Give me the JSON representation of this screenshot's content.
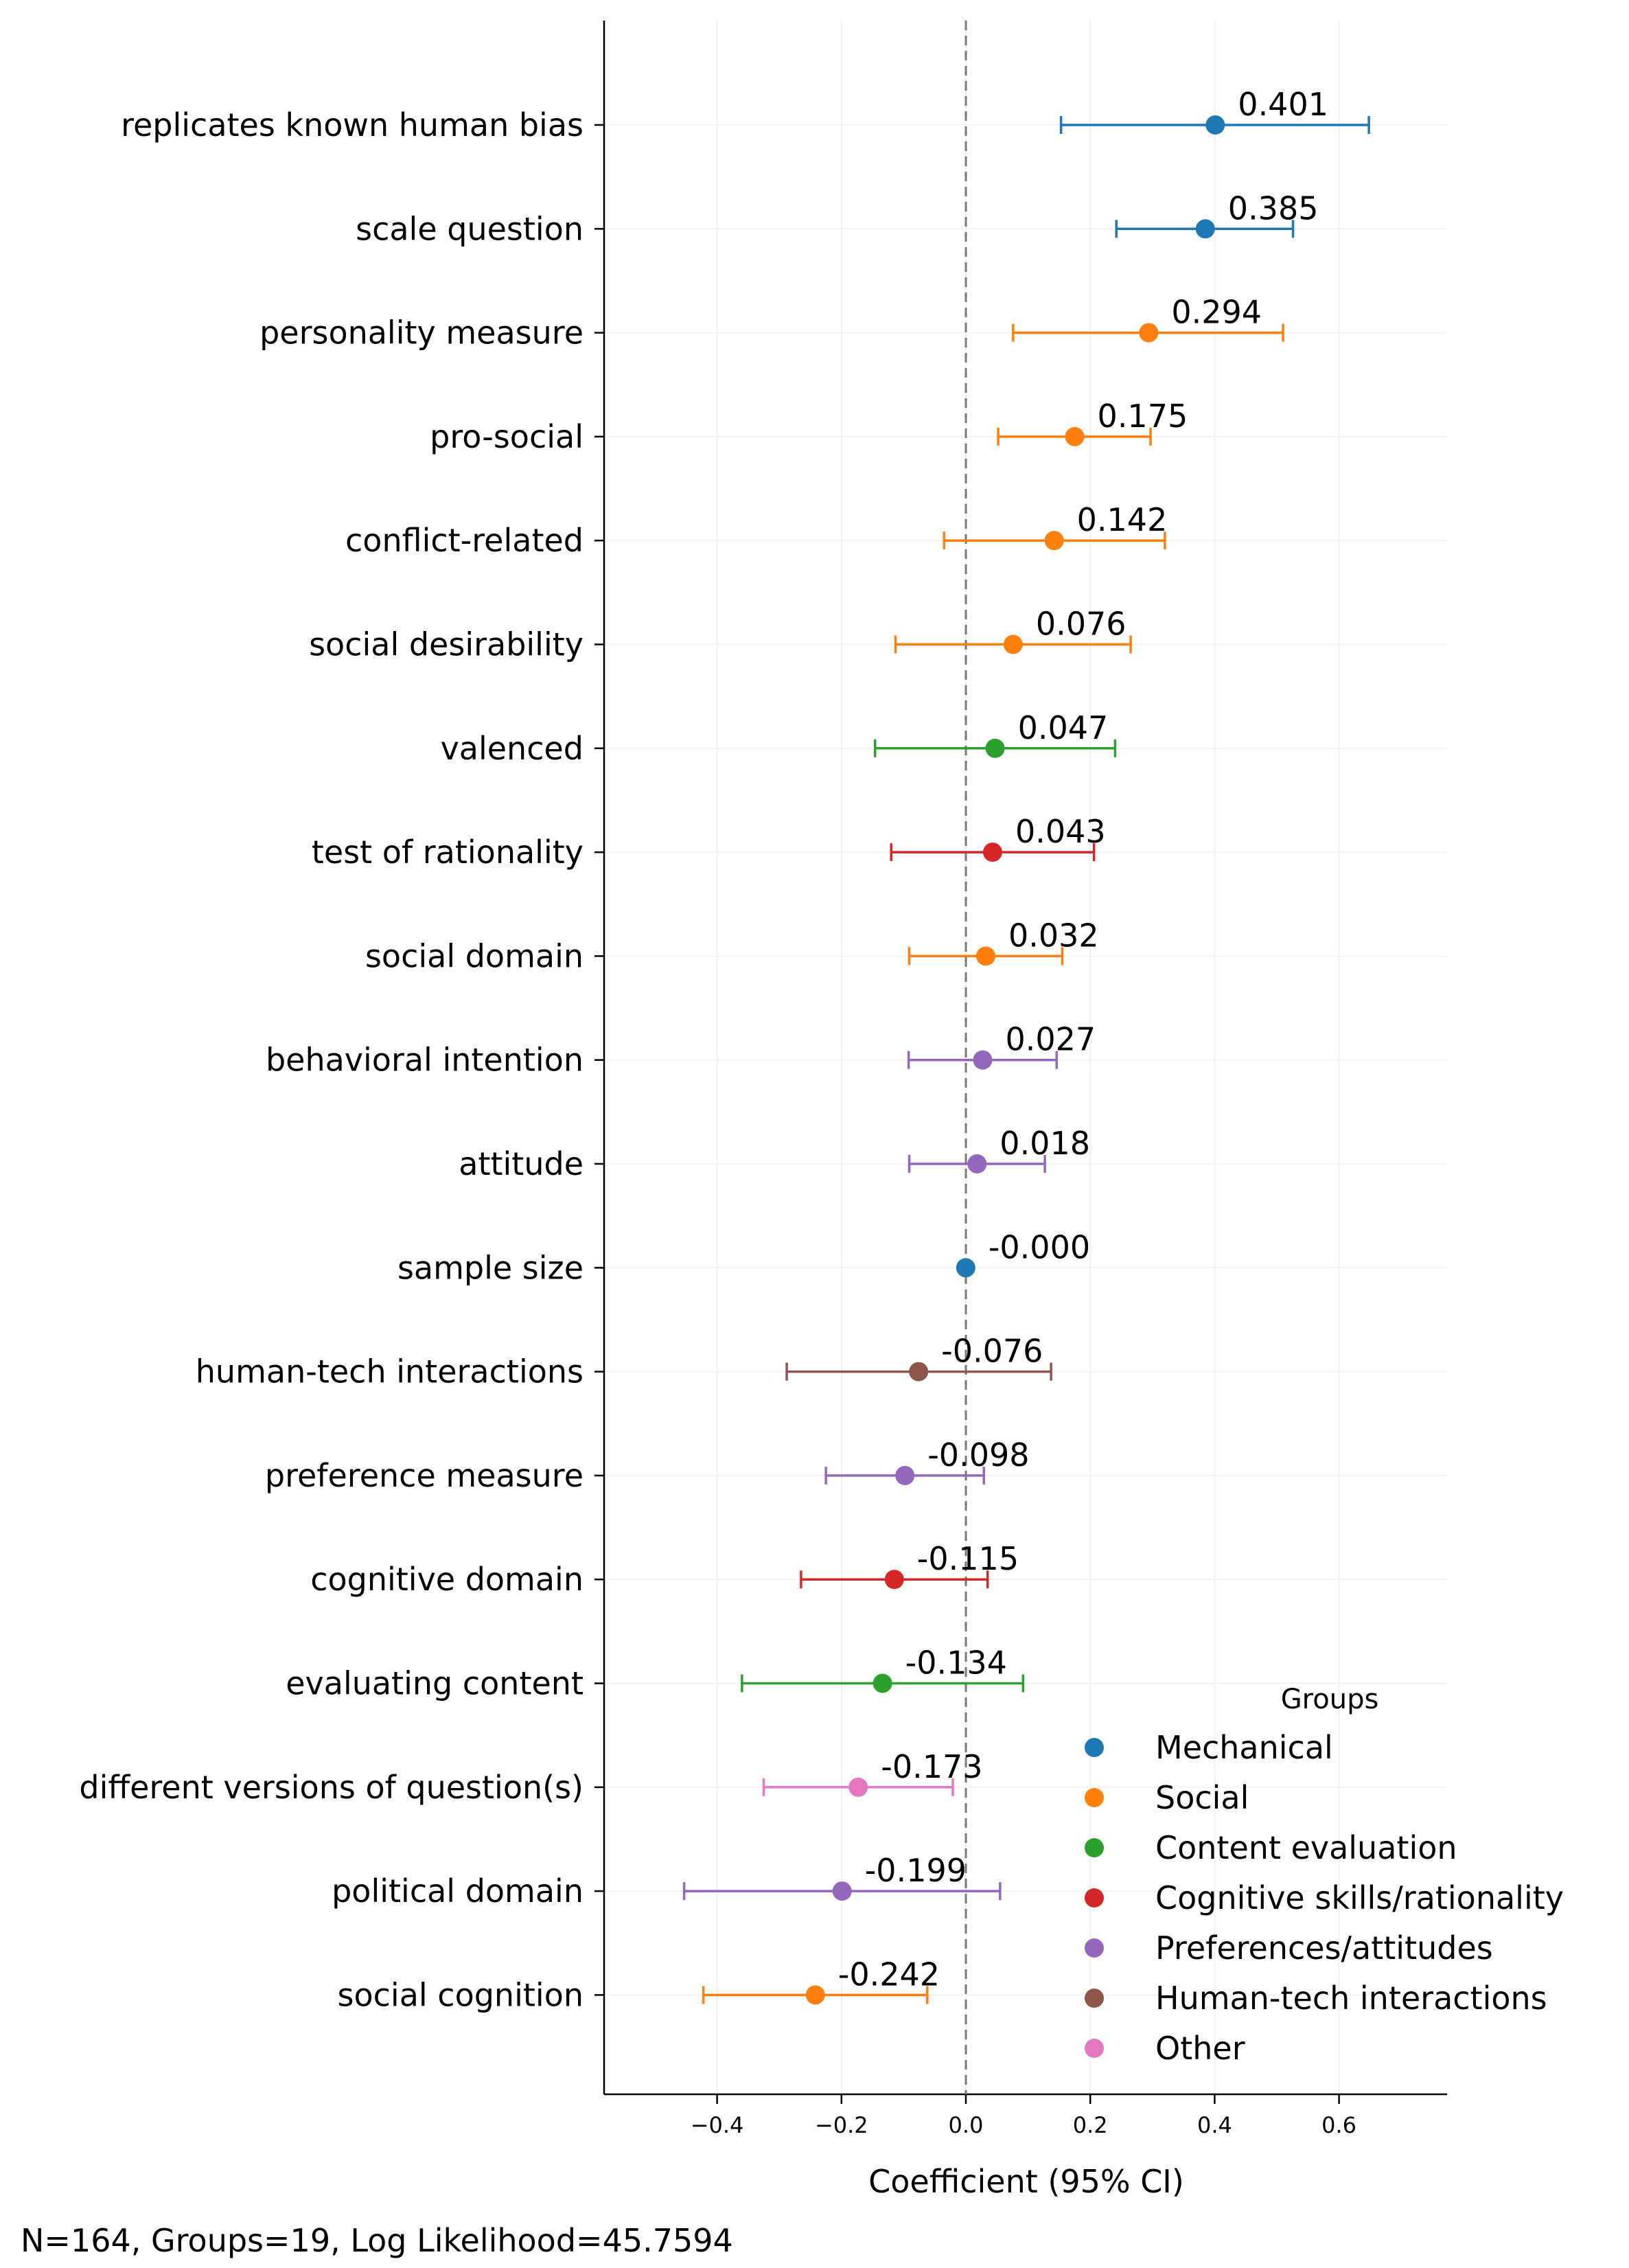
{
  "chart_data": {
    "type": "forest-plot",
    "xlabel": "Coefficient (95% CI)",
    "xlim": [
      -0.6,
      0.8
    ],
    "xticks": [
      -0.4,
      -0.2,
      0.0,
      0.2,
      0.4,
      0.6
    ],
    "xtick_labels": [
      "−0.4",
      "−0.2",
      "0.0",
      "0.2",
      "0.4",
      "0.6"
    ],
    "reference_line": 0,
    "grid": true,
    "legend": {
      "title": "Groups",
      "position": "lower-right",
      "entries": [
        {
          "name": "Mechanical",
          "color": "#1f77b4"
        },
        {
          "name": "Social",
          "color": "#ff7f0e"
        },
        {
          "name": "Content evaluation",
          "color": "#2ca02c"
        },
        {
          "name": "Cognitive skills/rationality",
          "color": "#d62728"
        },
        {
          "name": "Preferences/attitudes",
          "color": "#9467bd"
        },
        {
          "name": "Human-tech interactions",
          "color": "#8c564b"
        },
        {
          "name": "Other",
          "color": "#e377c2"
        }
      ]
    },
    "rows": [
      {
        "label": "replicates known human bias",
        "coef": 0.401,
        "coef_label": "0.401",
        "lo": 0.153,
        "hi": 0.648,
        "group": "Mechanical"
      },
      {
        "label": "scale question",
        "coef": 0.385,
        "coef_label": "0.385",
        "lo": 0.242,
        "hi": 0.526,
        "group": "Mechanical"
      },
      {
        "label": "personality measure",
        "coef": 0.294,
        "coef_label": "0.294",
        "lo": 0.076,
        "hi": 0.51,
        "group": "Social"
      },
      {
        "label": "pro-social",
        "coef": 0.175,
        "coef_label": "0.175",
        "lo": 0.052,
        "hi": 0.297,
        "group": "Social"
      },
      {
        "label": "conflict-related",
        "coef": 0.142,
        "coef_label": "0.142",
        "lo": -0.035,
        "hi": 0.32,
        "group": "Social"
      },
      {
        "label": "social desirability",
        "coef": 0.076,
        "coef_label": "0.076",
        "lo": -0.113,
        "hi": 0.265,
        "group": "Social"
      },
      {
        "label": "valenced",
        "coef": 0.047,
        "coef_label": "0.047",
        "lo": -0.146,
        "hi": 0.24,
        "group": "Content evaluation"
      },
      {
        "label": "test of rationality",
        "coef": 0.043,
        "coef_label": "0.043",
        "lo": -0.12,
        "hi": 0.206,
        "group": "Cognitive skills/rationality"
      },
      {
        "label": "social domain",
        "coef": 0.032,
        "coef_label": "0.032",
        "lo": -0.091,
        "hi": 0.155,
        "group": "Social"
      },
      {
        "label": "behavioral intention",
        "coef": 0.027,
        "coef_label": "0.027",
        "lo": -0.092,
        "hi": 0.146,
        "group": "Preferences/attitudes"
      },
      {
        "label": "attitude",
        "coef": 0.018,
        "coef_label": "0.018",
        "lo": -0.091,
        "hi": 0.127,
        "group": "Preferences/attitudes"
      },
      {
        "label": "sample size",
        "coef": -0.0002,
        "coef_label": "-0.000",
        "lo": -0.001,
        "hi": 0.001,
        "group": "Mechanical"
      },
      {
        "label": "human-tech interactions",
        "coef": -0.076,
        "coef_label": "-0.076",
        "lo": -0.288,
        "hi": 0.137,
        "group": "Human-tech interactions"
      },
      {
        "label": "preference measure",
        "coef": -0.098,
        "coef_label": "-0.098",
        "lo": -0.225,
        "hi": 0.029,
        "group": "Preferences/attitudes"
      },
      {
        "label": "cognitive domain",
        "coef": -0.115,
        "coef_label": "-0.115",
        "lo": -0.265,
        "hi": 0.035,
        "group": "Cognitive skills/rationality"
      },
      {
        "label": "evaluating content",
        "coef": -0.134,
        "coef_label": "-0.134",
        "lo": -0.36,
        "hi": 0.092,
        "group": "Content evaluation"
      },
      {
        "label": "different versions of question(s)",
        "coef": -0.173,
        "coef_label": "-0.173",
        "lo": -0.325,
        "hi": -0.021,
        "group": "Other"
      },
      {
        "label": "political domain",
        "coef": -0.199,
        "coef_label": "-0.199",
        "lo": -0.453,
        "hi": 0.055,
        "group": "Preferences/attitudes"
      },
      {
        "label": "social cognition",
        "coef": -0.242,
        "coef_label": "-0.242",
        "lo": -0.422,
        "hi": -0.062,
        "group": "Social"
      }
    ]
  },
  "footer": "N=164, Groups=19, Log Likelihood=45.7594"
}
